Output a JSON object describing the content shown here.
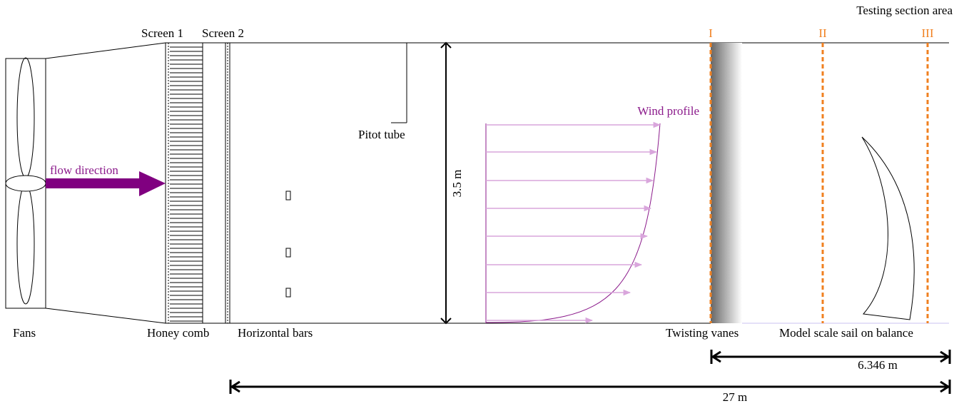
{
  "title": "Testing section area",
  "screens": [
    "Screen 1",
    "Screen 2"
  ],
  "sections": [
    "I",
    "II",
    "III"
  ],
  "annotations": {
    "wind_profile": "Wind profile",
    "pitot_tube": "Pitot tube",
    "flow_direction": "flow direction",
    "height": "3.5 m"
  },
  "components": [
    "Fans",
    "Honey comb",
    "Horizontal bars",
    "Twisting vanes",
    "Model scale sail on balance"
  ],
  "dimensions": [
    "6.346 m",
    "27 m"
  ]
}
